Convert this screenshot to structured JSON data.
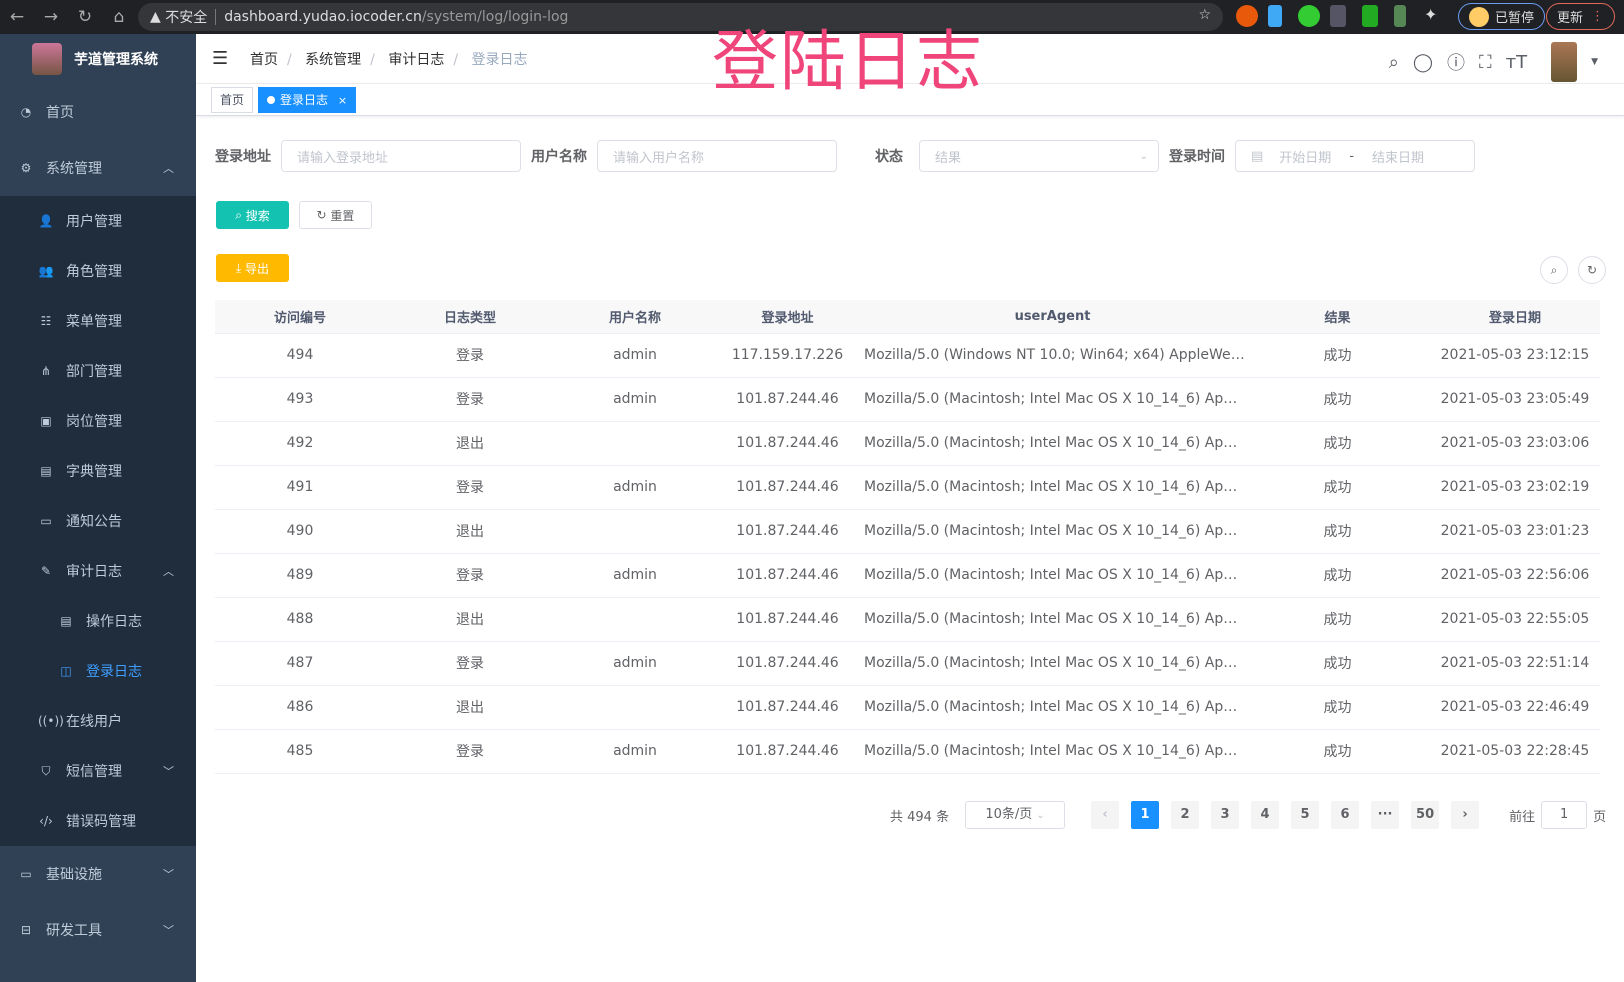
{
  "browser": {
    "security": "不安全",
    "url_host": "dashboard.yudao.iocoder.cn",
    "url_path": "/system/log/login-log",
    "profile": "已暂停",
    "update": "更新"
  },
  "overlay_title": "登陆日志",
  "sidebar": {
    "title": "芋道管理系统",
    "items": [
      {
        "label": "首页",
        "icon": "dashboard-icon",
        "level": 0
      },
      {
        "label": "系统管理",
        "icon": "gear-icon",
        "level": 0,
        "expanded": true
      },
      {
        "label": "用户管理",
        "icon": "user-icon",
        "level": 1
      },
      {
        "label": "角色管理",
        "icon": "peoples-icon",
        "level": 1
      },
      {
        "label": "菜单管理",
        "icon": "tree-table-icon",
        "level": 1
      },
      {
        "label": "部门管理",
        "icon": "tree-icon",
        "level": 1
      },
      {
        "label": "岗位管理",
        "icon": "post-icon",
        "level": 1
      },
      {
        "label": "字典管理",
        "icon": "dict-icon",
        "level": 1
      },
      {
        "label": "通知公告",
        "icon": "message-icon",
        "level": 1
      },
      {
        "label": "审计日志",
        "icon": "log-icon",
        "level": 1,
        "expanded": true
      },
      {
        "label": "操作日志",
        "icon": "form-icon",
        "level": 2
      },
      {
        "label": "登录日志",
        "icon": "logininfor-icon",
        "level": 2,
        "active": true
      },
      {
        "label": "在线用户",
        "icon": "online-icon",
        "level": 1
      },
      {
        "label": "短信管理",
        "icon": "shield-icon",
        "level": 1,
        "expanded": false
      },
      {
        "label": "错误码管理",
        "icon": "code-icon",
        "level": 1
      },
      {
        "label": "基础设施",
        "icon": "monitor-icon",
        "level": 0,
        "expanded": false
      },
      {
        "label": "研发工具",
        "icon": "toolbox-icon",
        "level": 0,
        "expanded": false
      }
    ]
  },
  "breadcrumb": [
    "首页",
    "系统管理",
    "审计日志",
    "登录日志"
  ],
  "tags": [
    {
      "label": "首页"
    },
    {
      "label": "登录日志",
      "active": true,
      "close": "×"
    }
  ],
  "filters": {
    "address": {
      "label": "登录地址",
      "placeholder": "请输入登录地址"
    },
    "username": {
      "label": "用户名称",
      "placeholder": "请输入用户名称"
    },
    "status": {
      "label": "状态",
      "placeholder": "结果"
    },
    "time": {
      "label": "登录时间",
      "start": "开始日期",
      "sep": "-",
      "end": "结束日期"
    }
  },
  "buttons": {
    "search": "搜索",
    "reset": "重置",
    "export": "导出"
  },
  "colors": {
    "sidebar": "#304156",
    "primary": "#1890ff",
    "search": "#13ce66",
    "export": "#ffba00"
  },
  "table": {
    "headers": [
      "访问编号",
      "日志类型",
      "用户名称",
      "登录地址",
      "userAgent",
      "结果",
      "登录日期"
    ],
    "rows": [
      [
        "494",
        "登录",
        "admin",
        "117.159.17.226",
        "Mozilla/5.0 (Windows NT 10.0; Win64; x64) AppleWebKit...",
        "成功",
        "2021-05-03 23:12:15"
      ],
      [
        "493",
        "登录",
        "admin",
        "101.87.244.46",
        "Mozilla/5.0 (Macintosh; Intel Mac OS X 10_14_6) AppleWe...",
        "成功",
        "2021-05-03 23:05:49"
      ],
      [
        "492",
        "退出",
        "",
        "101.87.244.46",
        "Mozilla/5.0 (Macintosh; Intel Mac OS X 10_14_6) AppleWe...",
        "成功",
        "2021-05-03 23:03:06"
      ],
      [
        "491",
        "登录",
        "admin",
        "101.87.244.46",
        "Mozilla/5.0 (Macintosh; Intel Mac OS X 10_14_6) AppleWe...",
        "成功",
        "2021-05-03 23:02:19"
      ],
      [
        "490",
        "退出",
        "",
        "101.87.244.46",
        "Mozilla/5.0 (Macintosh; Intel Mac OS X 10_14_6) AppleWe...",
        "成功",
        "2021-05-03 23:01:23"
      ],
      [
        "489",
        "登录",
        "admin",
        "101.87.244.46",
        "Mozilla/5.0 (Macintosh; Intel Mac OS X 10_14_6) AppleWe...",
        "成功",
        "2021-05-03 22:56:06"
      ],
      [
        "488",
        "退出",
        "",
        "101.87.244.46",
        "Mozilla/5.0 (Macintosh; Intel Mac OS X 10_14_6) AppleWe...",
        "成功",
        "2021-05-03 22:55:05"
      ],
      [
        "487",
        "登录",
        "admin",
        "101.87.244.46",
        "Mozilla/5.0 (Macintosh; Intel Mac OS X 10_14_6) AppleWe...",
        "成功",
        "2021-05-03 22:51:14"
      ],
      [
        "486",
        "退出",
        "",
        "101.87.244.46",
        "Mozilla/5.0 (Macintosh; Intel Mac OS X 10_14_6) AppleWe...",
        "成功",
        "2021-05-03 22:46:49"
      ],
      [
        "485",
        "登录",
        "admin",
        "101.87.244.46",
        "Mozilla/5.0 (Macintosh; Intel Mac OS X 10_14_6) AppleWe...",
        "成功",
        "2021-05-03 22:28:45"
      ]
    ]
  },
  "pagination": {
    "total": "共 494 条",
    "page_size": "10条/页",
    "pages": [
      "1",
      "2",
      "3",
      "4",
      "5",
      "6",
      "···",
      "50"
    ],
    "current": "1",
    "goto_label": "前往",
    "goto_value": "1",
    "goto_suffix": "页"
  }
}
